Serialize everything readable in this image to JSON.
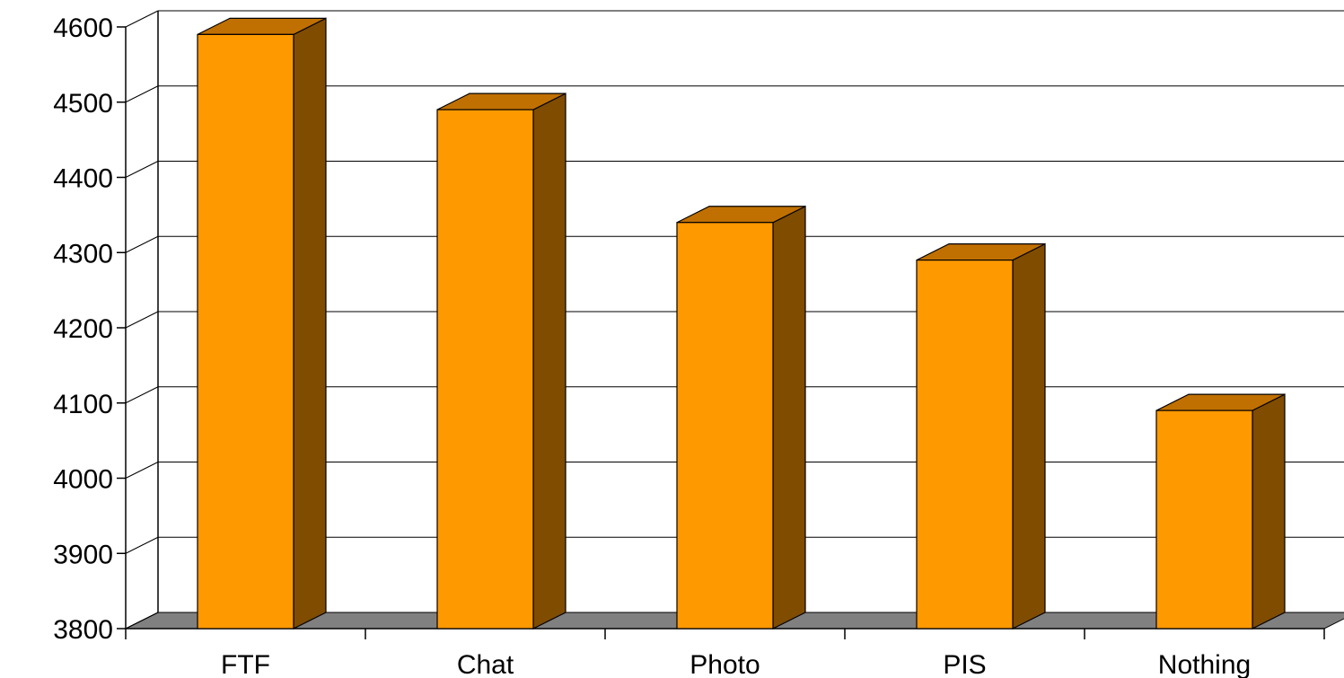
{
  "chart_data": {
    "type": "bar",
    "style": "3d-column",
    "title": "",
    "xlabel": "",
    "ylabel": "",
    "categories": [
      "FTF",
      "Chat",
      "Photo",
      "PIS",
      "Nothing"
    ],
    "values": [
      4590,
      4490,
      4340,
      4290,
      4090
    ],
    "ylim": [
      3800,
      4600
    ],
    "yticks": [
      3800,
      3900,
      4000,
      4100,
      4200,
      4300,
      4400,
      4500,
      4600
    ],
    "grid": true,
    "legend": "none"
  },
  "colors": {
    "bar_front": "#FF9900",
    "bar_top": "#C07000",
    "bar_side": "#804C00",
    "floor": "#808080",
    "gridline": "#000000",
    "outline": "#000000"
  }
}
